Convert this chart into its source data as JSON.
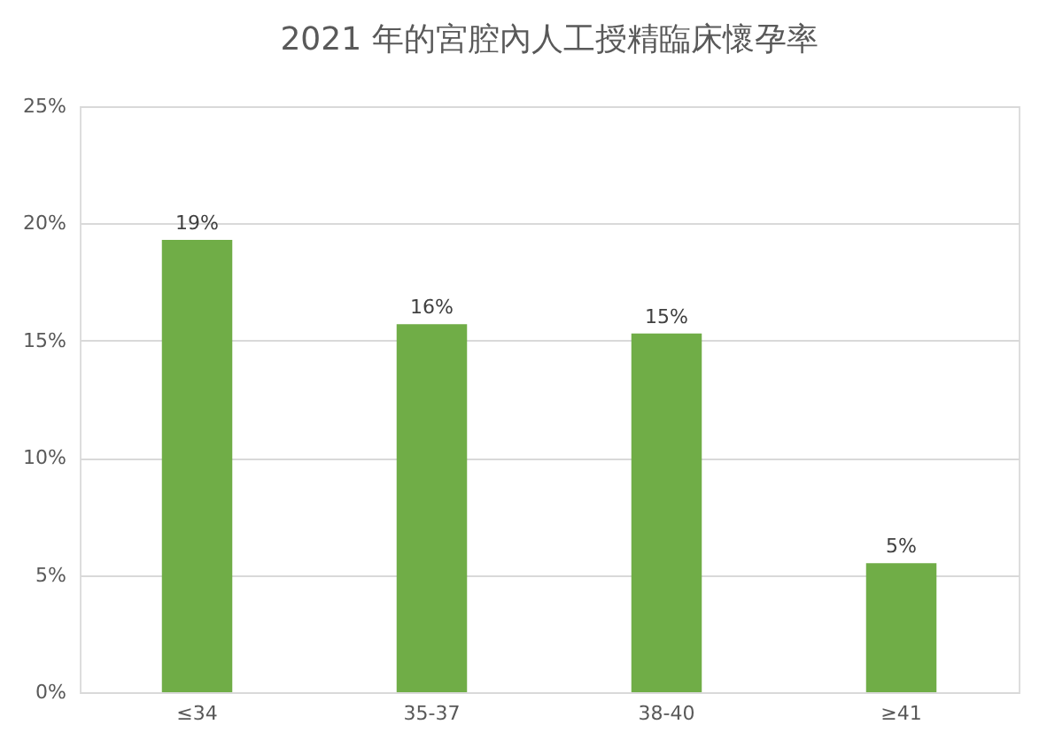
{
  "chart_data": {
    "type": "bar",
    "title": "2021 年的宮腔內人工授精臨床懷孕率",
    "categories": [
      "≤34",
      "35-37",
      "38-40",
      "≥41"
    ],
    "series": [
      {
        "color": "#70ad47",
        "values": [
          19.3,
          15.7,
          15.3,
          5.5
        ],
        "value_labels": [
          "19%",
          "16%",
          "15%",
          "5%"
        ]
      }
    ],
    "ylim": [
      0,
      25
    ],
    "yticks": [
      {
        "value": 0,
        "label": "0%"
      },
      {
        "value": 5,
        "label": "5%"
      },
      {
        "value": 10,
        "label": "10%"
      },
      {
        "value": 15,
        "label": "15%"
      },
      {
        "value": 20,
        "label": "20%"
      },
      {
        "value": 25,
        "label": "25%"
      }
    ],
    "grid": "y"
  }
}
